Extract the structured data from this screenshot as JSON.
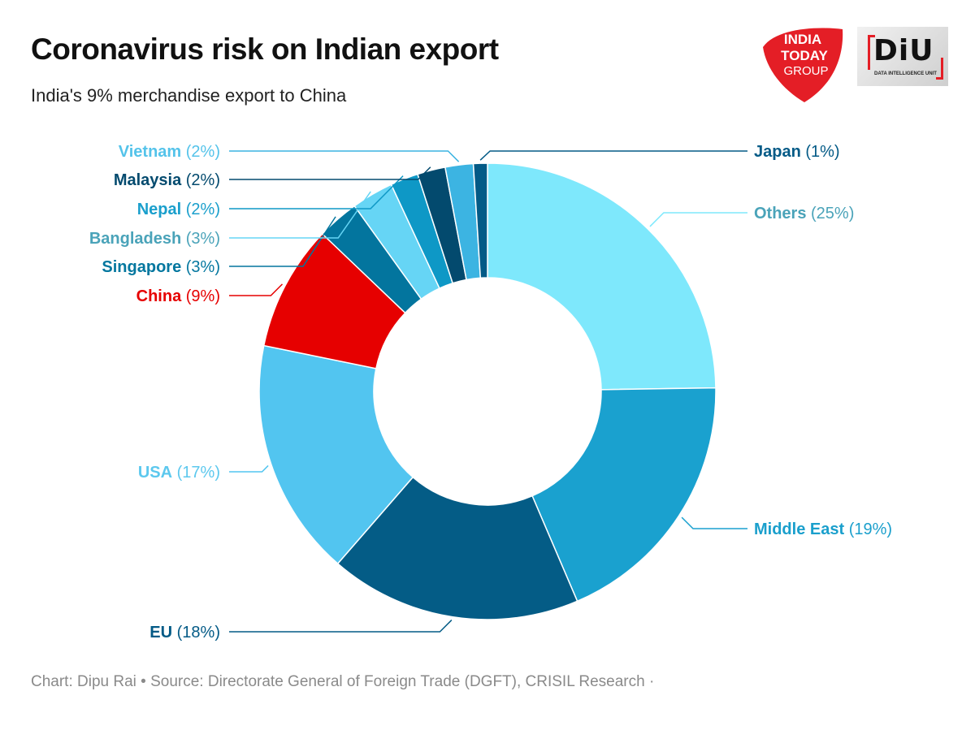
{
  "title": "Coronavirus risk on Indian export",
  "subtitle": "India's 9% merchandise export to China",
  "footer": "Chart: Dipu Rai • Source: Directorate General of Foreign Trade (DGFT), CRISIL Research ·",
  "logos": {
    "india_today": [
      "INDIA",
      "TODAY",
      "GROUP"
    ],
    "diu_mark": "DiU",
    "diu_tagline": "DATA INTELLIGENCE UNIT"
  },
  "colors": {
    "brand_red": "#e41e26",
    "china": "#e60000",
    "footer_gray": "#8a8a8a"
  },
  "chart_data": {
    "type": "pie",
    "variant": "donut",
    "unit": "%",
    "slices": [
      {
        "label": "Others",
        "value": 25,
        "color": "#7ee8fc",
        "text_color": "#4aa3b9"
      },
      {
        "label": "Middle East",
        "value": 19,
        "color": "#1aa1cf",
        "text_color": "#1a9fcc"
      },
      {
        "label": "EU",
        "value": 18,
        "color": "#045c86",
        "text_color": "#035a86"
      },
      {
        "label": "USA",
        "value": 17,
        "color": "#52c5f0",
        "text_color": "#5cc8ee"
      },
      {
        "label": "China",
        "value": 9,
        "color": "#e60000",
        "text_color": "#e60000"
      },
      {
        "label": "Singapore",
        "value": 3,
        "color": "#03759e",
        "text_color": "#04779f"
      },
      {
        "label": "Bangladesh",
        "value": 3,
        "color": "#66d5f5",
        "text_color": "#4aa3b9"
      },
      {
        "label": "Nepal",
        "value": 2,
        "color": "#0e98c6",
        "text_color": "#1a9fcc"
      },
      {
        "label": "Malaysia",
        "value": 2,
        "color": "#034a6e",
        "text_color": "#034a6e"
      },
      {
        "label": "Vietnam",
        "value": 2,
        "color": "#3cb4e2",
        "text_color": "#54c3ea"
      },
      {
        "label": "Japan",
        "value": 1,
        "color": "#035a86",
        "text_color": "#035a86"
      }
    ]
  }
}
